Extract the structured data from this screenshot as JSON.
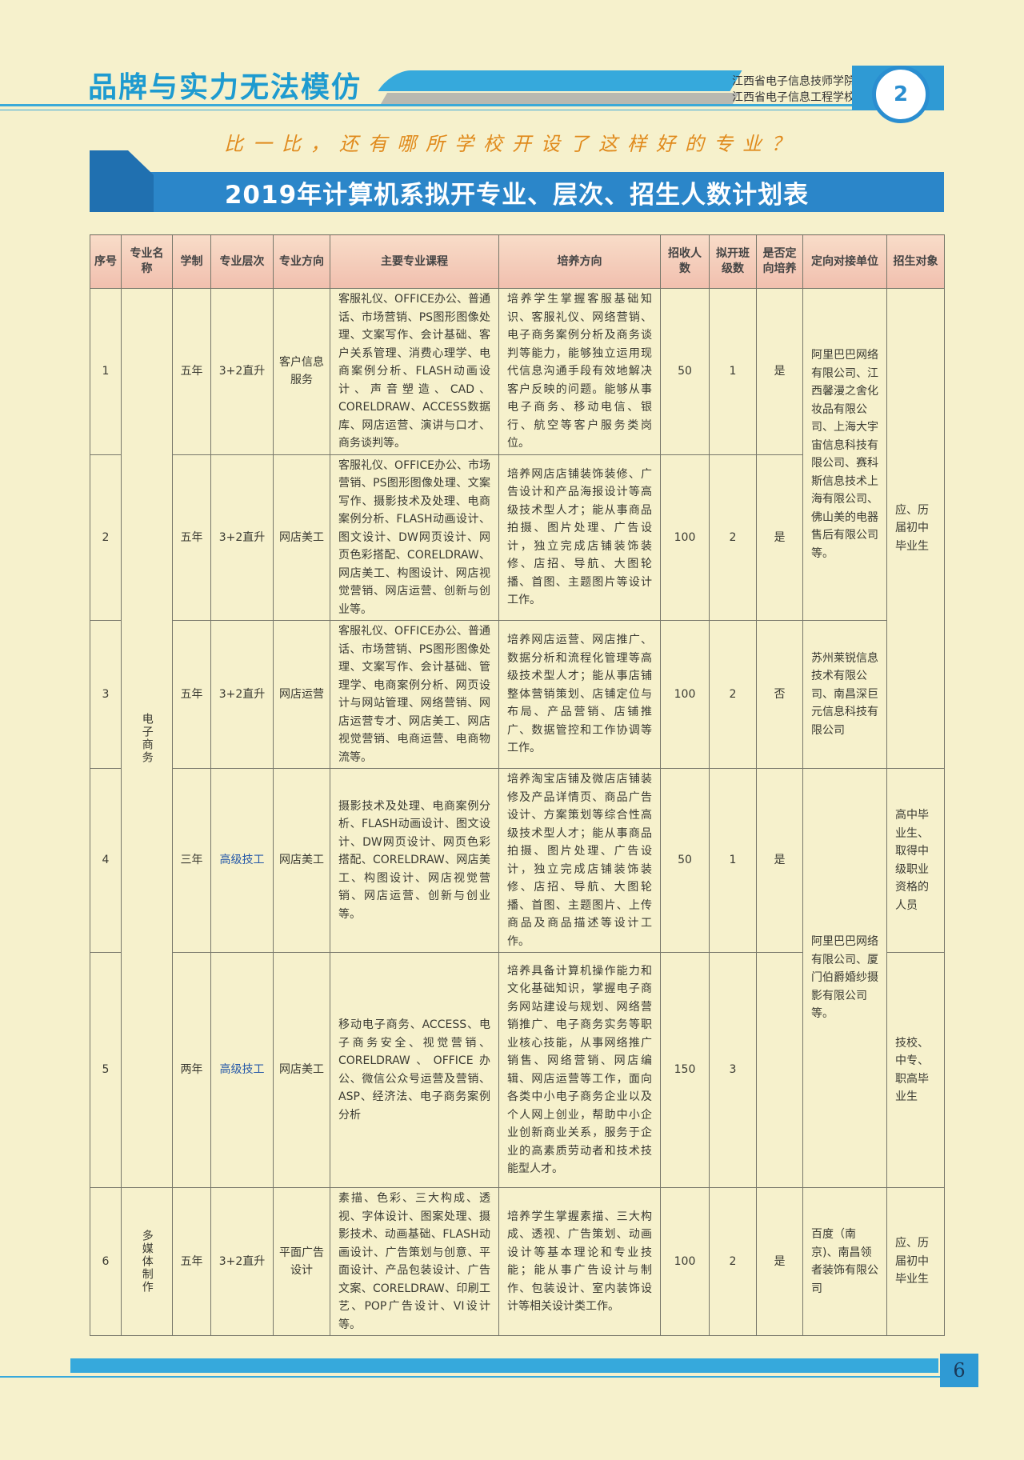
{
  "header": {
    "brand": "品牌与实力无法模仿",
    "school_lines": [
      "江西省电子信息技师学院",
      "江西省电子信息工程学校"
    ],
    "logo_mark": "2",
    "slogan": "比一比，还有哪所学校开设了这样好的专业？",
    "title": "2019年计算机系拟开专业、层次、招生人数计划表"
  },
  "table": {
    "columns": [
      "序号",
      "专业名称",
      "学制",
      "专业层次",
      "专业方向",
      "主要专业课程",
      "培养方向",
      "招收人数",
      "拟开班级数",
      "是否定向培养",
      "定向对接单位",
      "招生对象"
    ],
    "majors": [
      "电子商务",
      "多媒体制作"
    ],
    "rows": [
      {
        "no": "1",
        "years": "五年",
        "level": "3+2直升",
        "direction": "客户信息服务",
        "courses": "客服礼仪、OFFICE办公、普通话、市场营销、PS图形图像处理、文案写作、会计基础、客户关系管理、消费心理学、电商案例分析、FLASH动画设计、声音塑造、CAD、CORELDRAW、ACCESS数据库、网店运营、演讲与口才、商务谈判等。",
        "goal": "培养学生掌握客服基础知识、客服礼仪、网络营销、电子商务案例分析及商务谈判等能力，能够独立运用现代信息沟通手段有效地解决客户反映的问题。能够从事电子商务、移动电信、银行、航空等客户服务类岗位。",
        "enroll": "50",
        "classes": "1",
        "oriented": "是"
      },
      {
        "no": "2",
        "years": "五年",
        "level": "3+2直升",
        "direction": "网店美工",
        "courses": "客服礼仪、OFFICE办公、市场营销、PS图形图像处理、文案写作、摄影技术及处理、电商案例分析、FLASH动画设计、图文设计、DW网页设计、网页色彩搭配、CORELDRAW、网店美工、构图设计、网店视觉营销、网店运营、创新与创业等。",
        "goal": "培养网店店铺装饰装修、广告设计和产品海报设计等高级技术型人才；能从事商品拍摄、图片处理、广告设计，独立完成店铺装饰装修、店招、导航、大图轮播、首图、主题图片等设计工作。",
        "enroll": "100",
        "classes": "2",
        "oriented": "是"
      },
      {
        "no": "3",
        "years": "五年",
        "level": "3+2直升",
        "direction": "网店运营",
        "courses": "客服礼仪、OFFICE办公、普通话、市场营销、PS图形图像处理、文案写作、会计基础、管理学、电商案例分析、网页设计与网站管理、网络营销、网店运营专才、网店美工、网店视觉营销、电商运营、电商物流等。",
        "goal": "培养网店运营、网店推广、数据分析和流程化管理等高级技术型人才；能从事店铺整体营销策划、店铺定位与布局、产品营销、店铺推广、数据管控和工作协调等工作。",
        "enroll": "100",
        "classes": "2",
        "oriented": "否"
      },
      {
        "no": "4",
        "years": "三年",
        "level": "高级技工",
        "direction": "网店美工",
        "courses": "摄影技术及处理、电商案例分析、FLASH动画设计、图文设计、DW网页设计、网页色彩搭配、CORELDRAW、网店美工、构图设计、网店视觉营销、网店运营、创新与创业等。",
        "goal": "培养淘宝店铺及微店店铺装修及产品详情页、商品广告设计、方案策划等综合性高级技术型人才；能从事商品拍摄、图片处理、广告设计，独立完成店铺装饰装修、店招、导航、大图轮播、首图、主题图片、上传商品及商品描述等设计工作。",
        "enroll": "50",
        "classes": "1",
        "oriented": "是"
      },
      {
        "no": "5",
        "years": "两年",
        "level": "高级技工",
        "direction": "网店美工",
        "courses": "移动电子商务、ACCESS、电子商务安全、视觉营销、CORELDRAW、OFFICE办公、微信公众号运营及营销、ASP、经济法、电子商务案例分析",
        "goal": "培养具备计算机操作能力和文化基础知识，掌握电子商务网站建设与规划、网络营销推广、电子商务实务等职业核心技能，从事网络推广销售、网络营销、网店编辑、网店运营等工作，面向各类中小电子商务企业以及个人网上创业，帮助中小企业创新商业关系，服务于企业的高素质劳动者和技术技能型人才。",
        "enroll": "150",
        "classes": "3",
        "oriented": ""
      },
      {
        "no": "6",
        "years": "五年",
        "level": "3+2直升",
        "direction": "平面广告设计",
        "courses": "素描、色彩、三大构成、透视、字体设计、图案处理、摄影技术、动画基础、FLASH动画设计、广告策划与创意、平面设计、产品包装设计、广告文案、CORELDRAW、印刷工艺、POP广告设计、VI设计等。",
        "goal": "培养学生掌握素描、三大构成、透视、广告策划、动画设计等基本理论和专业技能；能从事广告设计与制作、包装设计、室内装饰设计等相关设计类工作。",
        "enroll": "100",
        "classes": "2",
        "oriented": "是"
      }
    ],
    "partners": [
      "阿里巴巴网络有限公司、江西馨漫之舍化妆品有限公司、上海大宇宙信息科技有限公司、赛科斯信息技术上海有限公司、佛山美的电器售后有限公司等。",
      "苏州莱锐信息技术有限公司、南昌深巨元信息科技有限公司",
      "阿里巴巴网络有限公司、厦门伯爵婚纱摄影有限公司等。",
      "百度（南京)、南昌领者装饰有限公司"
    ],
    "targets": [
      "应、历届初中毕业生",
      "高中毕业生、取得中级职业资格的人员",
      "技校、中专、职高毕业生",
      "应、历届初中毕业生"
    ]
  },
  "footer": {
    "page": "6"
  },
  "colors": {
    "accent": "#2b86c9",
    "header_row": "#f1bfae",
    "paper": "#f6f1cc",
    "slogan": "#e08a1c"
  }
}
